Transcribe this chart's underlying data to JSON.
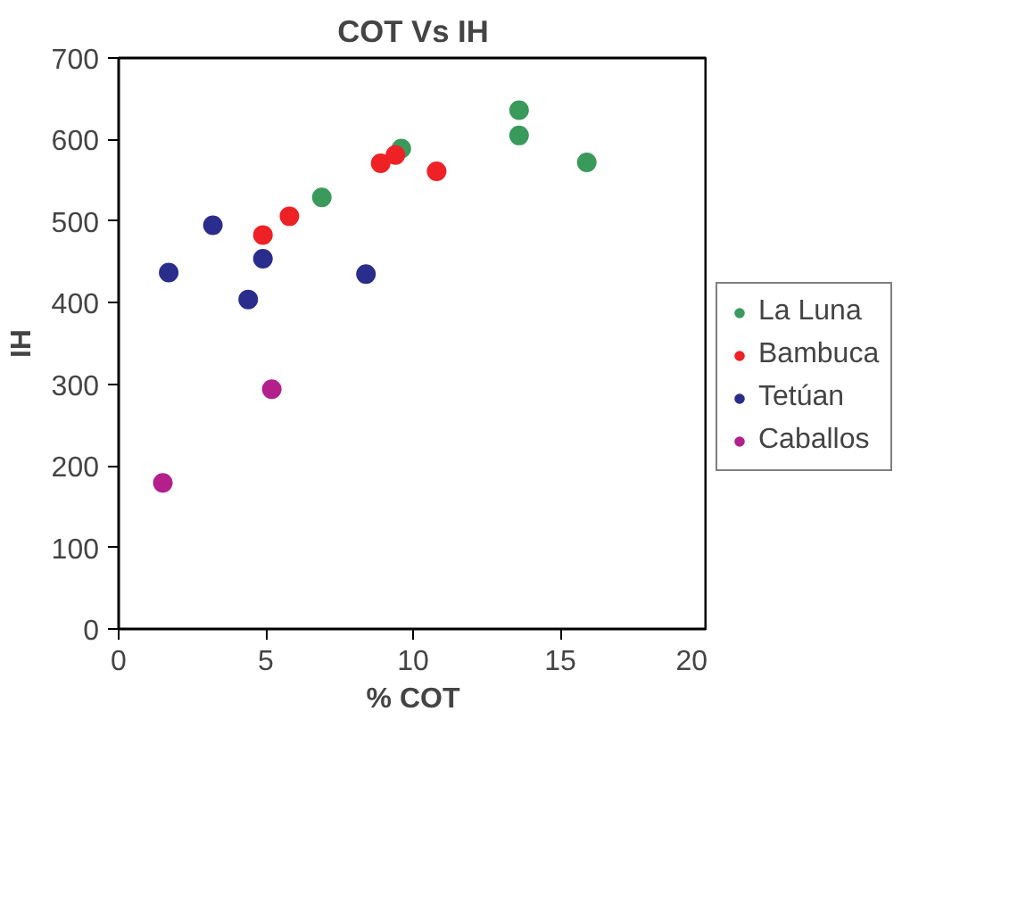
{
  "chart_data": {
    "type": "scatter",
    "title": "COT Vs IH",
    "xlabel": "% COT",
    "ylabel": "IH",
    "xlim": [
      0,
      20
    ],
    "xticks": [
      0,
      5,
      10,
      15,
      20
    ],
    "ylim": [
      0,
      700
    ],
    "yticks": [
      0,
      100,
      200,
      300,
      400,
      500,
      600,
      700
    ],
    "grid": false,
    "legend": "right",
    "marker": "circle",
    "series": [
      {
        "name": "La Luna",
        "color": "#3a9a5c",
        "x": [
          6.9,
          9.6,
          13.6,
          13.6,
          15.9
        ],
        "values": [
          529,
          589,
          636,
          605,
          572
        ]
      },
      {
        "name": "Bambuca",
        "color": "#ee2226",
        "x": [
          4.9,
          5.8,
          8.9,
          9.4,
          10.8
        ],
        "values": [
          483,
          506,
          571,
          581,
          561
        ]
      },
      {
        "name": "Tetúan",
        "color": "#2b2d8c",
        "x": [
          1.7,
          3.2,
          4.9,
          4.4,
          8.4
        ],
        "values": [
          437,
          495,
          454,
          404,
          435
        ]
      },
      {
        "name": "Caballos",
        "color": "#b3208c",
        "x": [
          1.5,
          5.2
        ],
        "values": [
          179,
          294
        ]
      }
    ]
  }
}
